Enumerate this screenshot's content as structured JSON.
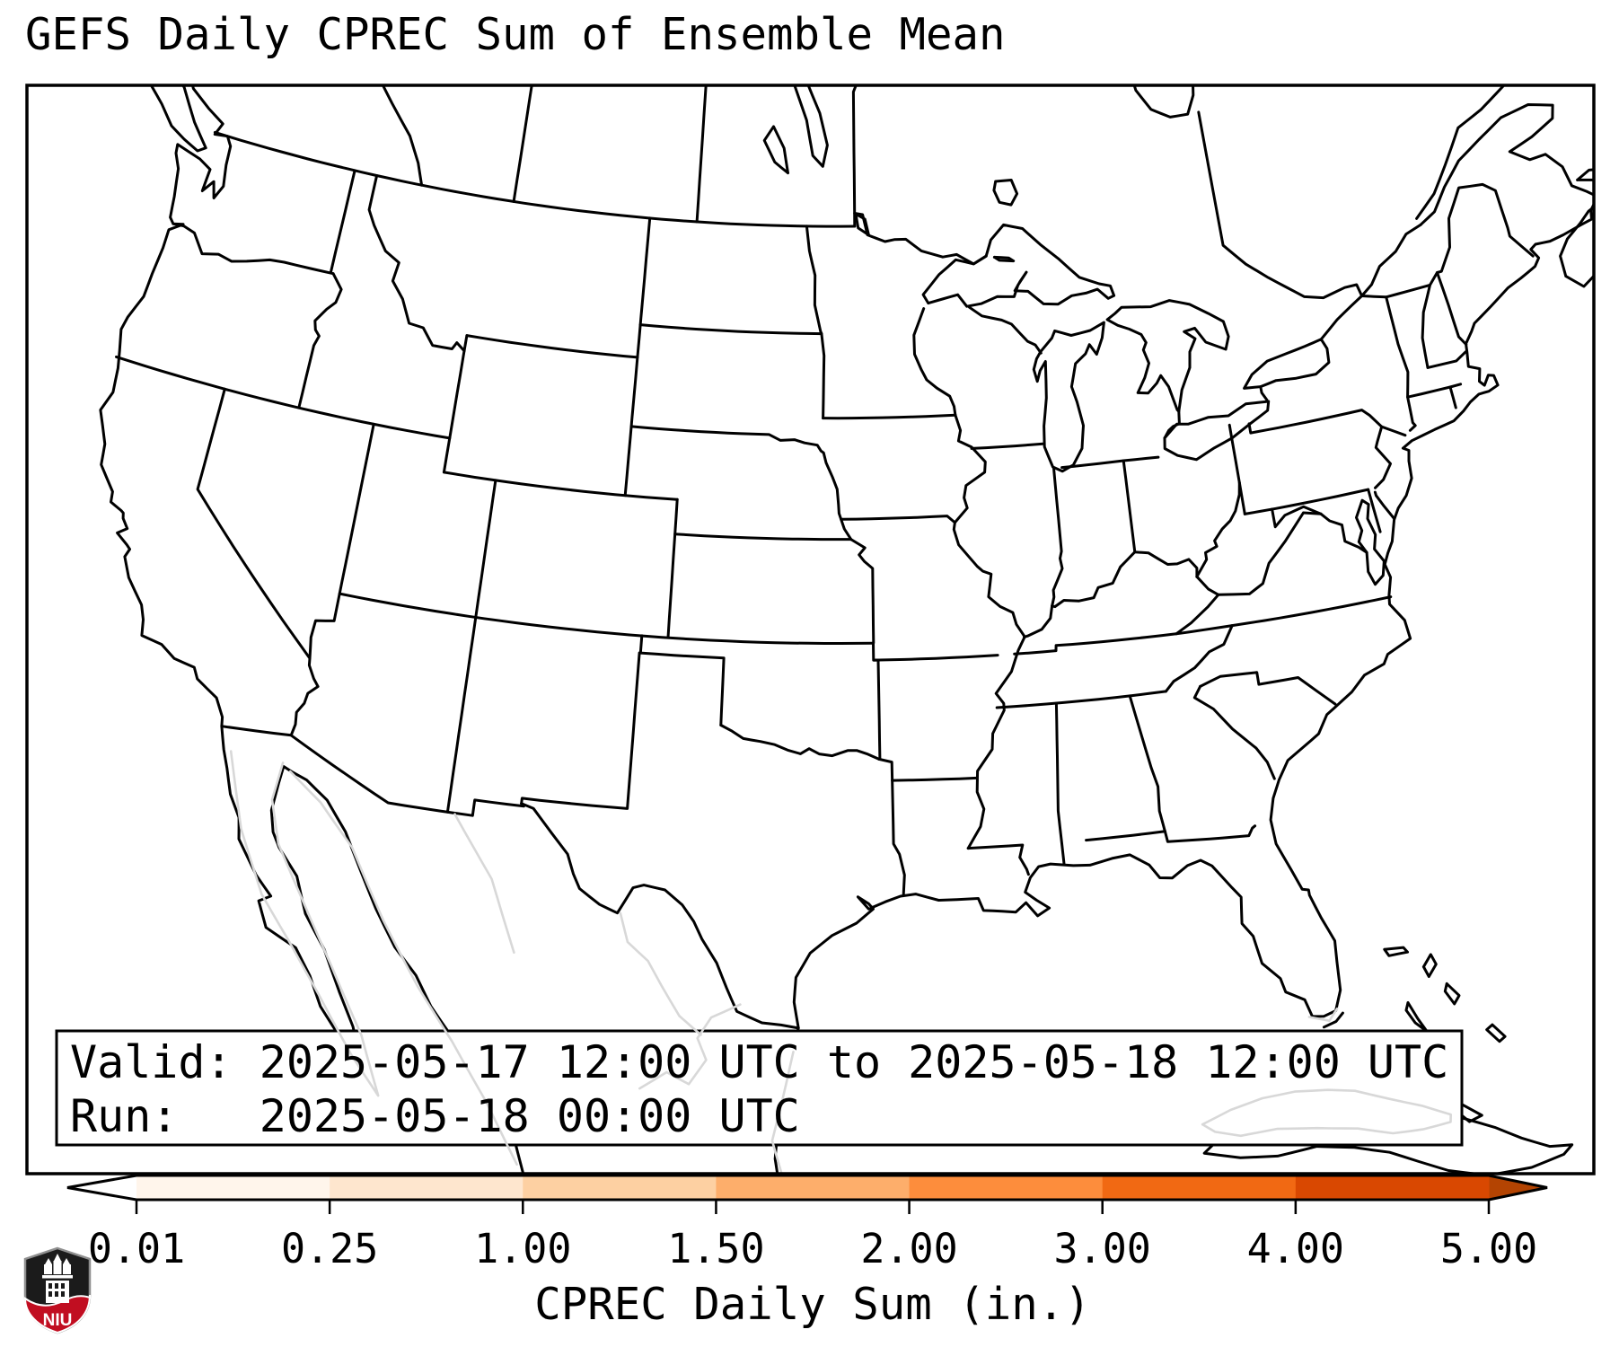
{
  "title": "GEFS Daily CPREC Sum of Ensemble Mean",
  "info_box": {
    "valid_line": "Valid: 2025-05-17 12:00 UTC to 2025-05-18 12:00 UTC",
    "run_line": "Run:   2025-05-18 00:00 UTC"
  },
  "colorbar": {
    "label": "CPREC Daily Sum (in.)",
    "tick_labels": [
      "0.01",
      "0.25",
      "1.00",
      "1.50",
      "2.00",
      "3.00",
      "4.00",
      "5.00"
    ],
    "tick_values": [
      0.01,
      0.25,
      1.0,
      1.5,
      2.0,
      3.0,
      4.0,
      5.0
    ],
    "segment_colors": [
      "#fff5eb",
      "#fee6ce",
      "#fdd0a2",
      "#fdae6b",
      "#fd8d3c",
      "#f16913",
      "#d94801"
    ],
    "under_arrow_color": "#ffffff",
    "over_arrow_color": "#b44402",
    "outline_color": "#000000"
  },
  "logo": {
    "text": "NIU",
    "shield_color": "#1b1b1b",
    "band_color": "#c10e21",
    "border_color": "#8f8f8f"
  },
  "map": {
    "background": "#ffffff",
    "stroke_color": "#000000",
    "secondary_stroke_color": "#d8d8d8"
  }
}
